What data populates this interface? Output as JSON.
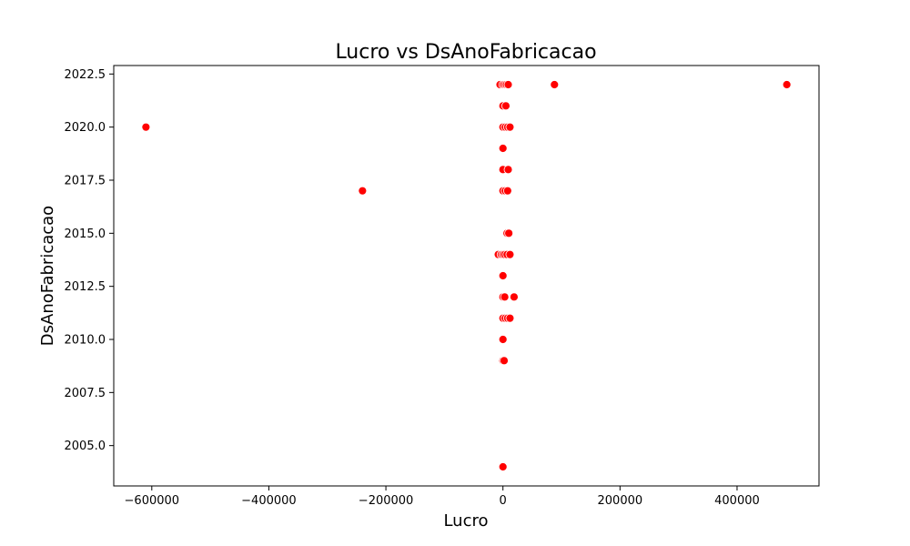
{
  "chart_data": {
    "type": "scatter",
    "title": "Lucro vs DsAnoFabricacao",
    "xlabel": "Lucro",
    "ylabel": "DsAnoFabricacao",
    "xlim": [
      -665000,
      540000
    ],
    "ylim": [
      2003.1,
      2022.9
    ],
    "xticks": [
      -600000,
      -400000,
      -200000,
      0,
      200000,
      400000
    ],
    "xtick_labels": [
      "−600000",
      "−400000",
      "−200000",
      "0",
      "200000",
      "400000"
    ],
    "yticks": [
      2005.0,
      2007.5,
      2010.0,
      2012.5,
      2015.0,
      2017.5,
      2020.0,
      2022.5
    ],
    "ytick_labels": [
      "2005.0",
      "2007.5",
      "2010.0",
      "2012.5",
      "2015.0",
      "2017.5",
      "2020.0",
      "2022.5"
    ],
    "grid": false,
    "marker_color": "#ff0000",
    "marker_edge_color": "#ffffff",
    "points": [
      {
        "x": -610000,
        "y": 2020
      },
      {
        "x": -240000,
        "y": 2017
      },
      {
        "x": 88000,
        "y": 2022
      },
      {
        "x": 485000,
        "y": 2022
      },
      {
        "x": -5000,
        "y": 2022
      },
      {
        "x": 0,
        "y": 2022
      },
      {
        "x": 3000,
        "y": 2022
      },
      {
        "x": 6000,
        "y": 2022
      },
      {
        "x": 9000,
        "y": 2022
      },
      {
        "x": 0,
        "y": 2021
      },
      {
        "x": 5000,
        "y": 2021
      },
      {
        "x": 0,
        "y": 2020
      },
      {
        "x": 4000,
        "y": 2020
      },
      {
        "x": 8000,
        "y": 2020
      },
      {
        "x": 12000,
        "y": 2020
      },
      {
        "x": 0,
        "y": 2019
      },
      {
        "x": 0,
        "y": 2018
      },
      {
        "x": 9000,
        "y": 2018
      },
      {
        "x": 0,
        "y": 2017
      },
      {
        "x": 4000,
        "y": 2017
      },
      {
        "x": 8000,
        "y": 2017
      },
      {
        "x": 7000,
        "y": 2015
      },
      {
        "x": 10000,
        "y": 2015
      },
      {
        "x": -8000,
        "y": 2014
      },
      {
        "x": -3000,
        "y": 2014
      },
      {
        "x": 0,
        "y": 2014
      },
      {
        "x": 3000,
        "y": 2014
      },
      {
        "x": 7000,
        "y": 2014
      },
      {
        "x": 12000,
        "y": 2014
      },
      {
        "x": 0,
        "y": 2013
      },
      {
        "x": 0,
        "y": 2012
      },
      {
        "x": 3000,
        "y": 2012
      },
      {
        "x": 19000,
        "y": 2012
      },
      {
        "x": 0,
        "y": 2011
      },
      {
        "x": 4000,
        "y": 2011
      },
      {
        "x": 8000,
        "y": 2011
      },
      {
        "x": 12000,
        "y": 2011
      },
      {
        "x": 0,
        "y": 2010
      },
      {
        "x": 0,
        "y": 2009
      },
      {
        "x": 2000,
        "y": 2009
      },
      {
        "x": 0,
        "y": 2004
      }
    ]
  }
}
